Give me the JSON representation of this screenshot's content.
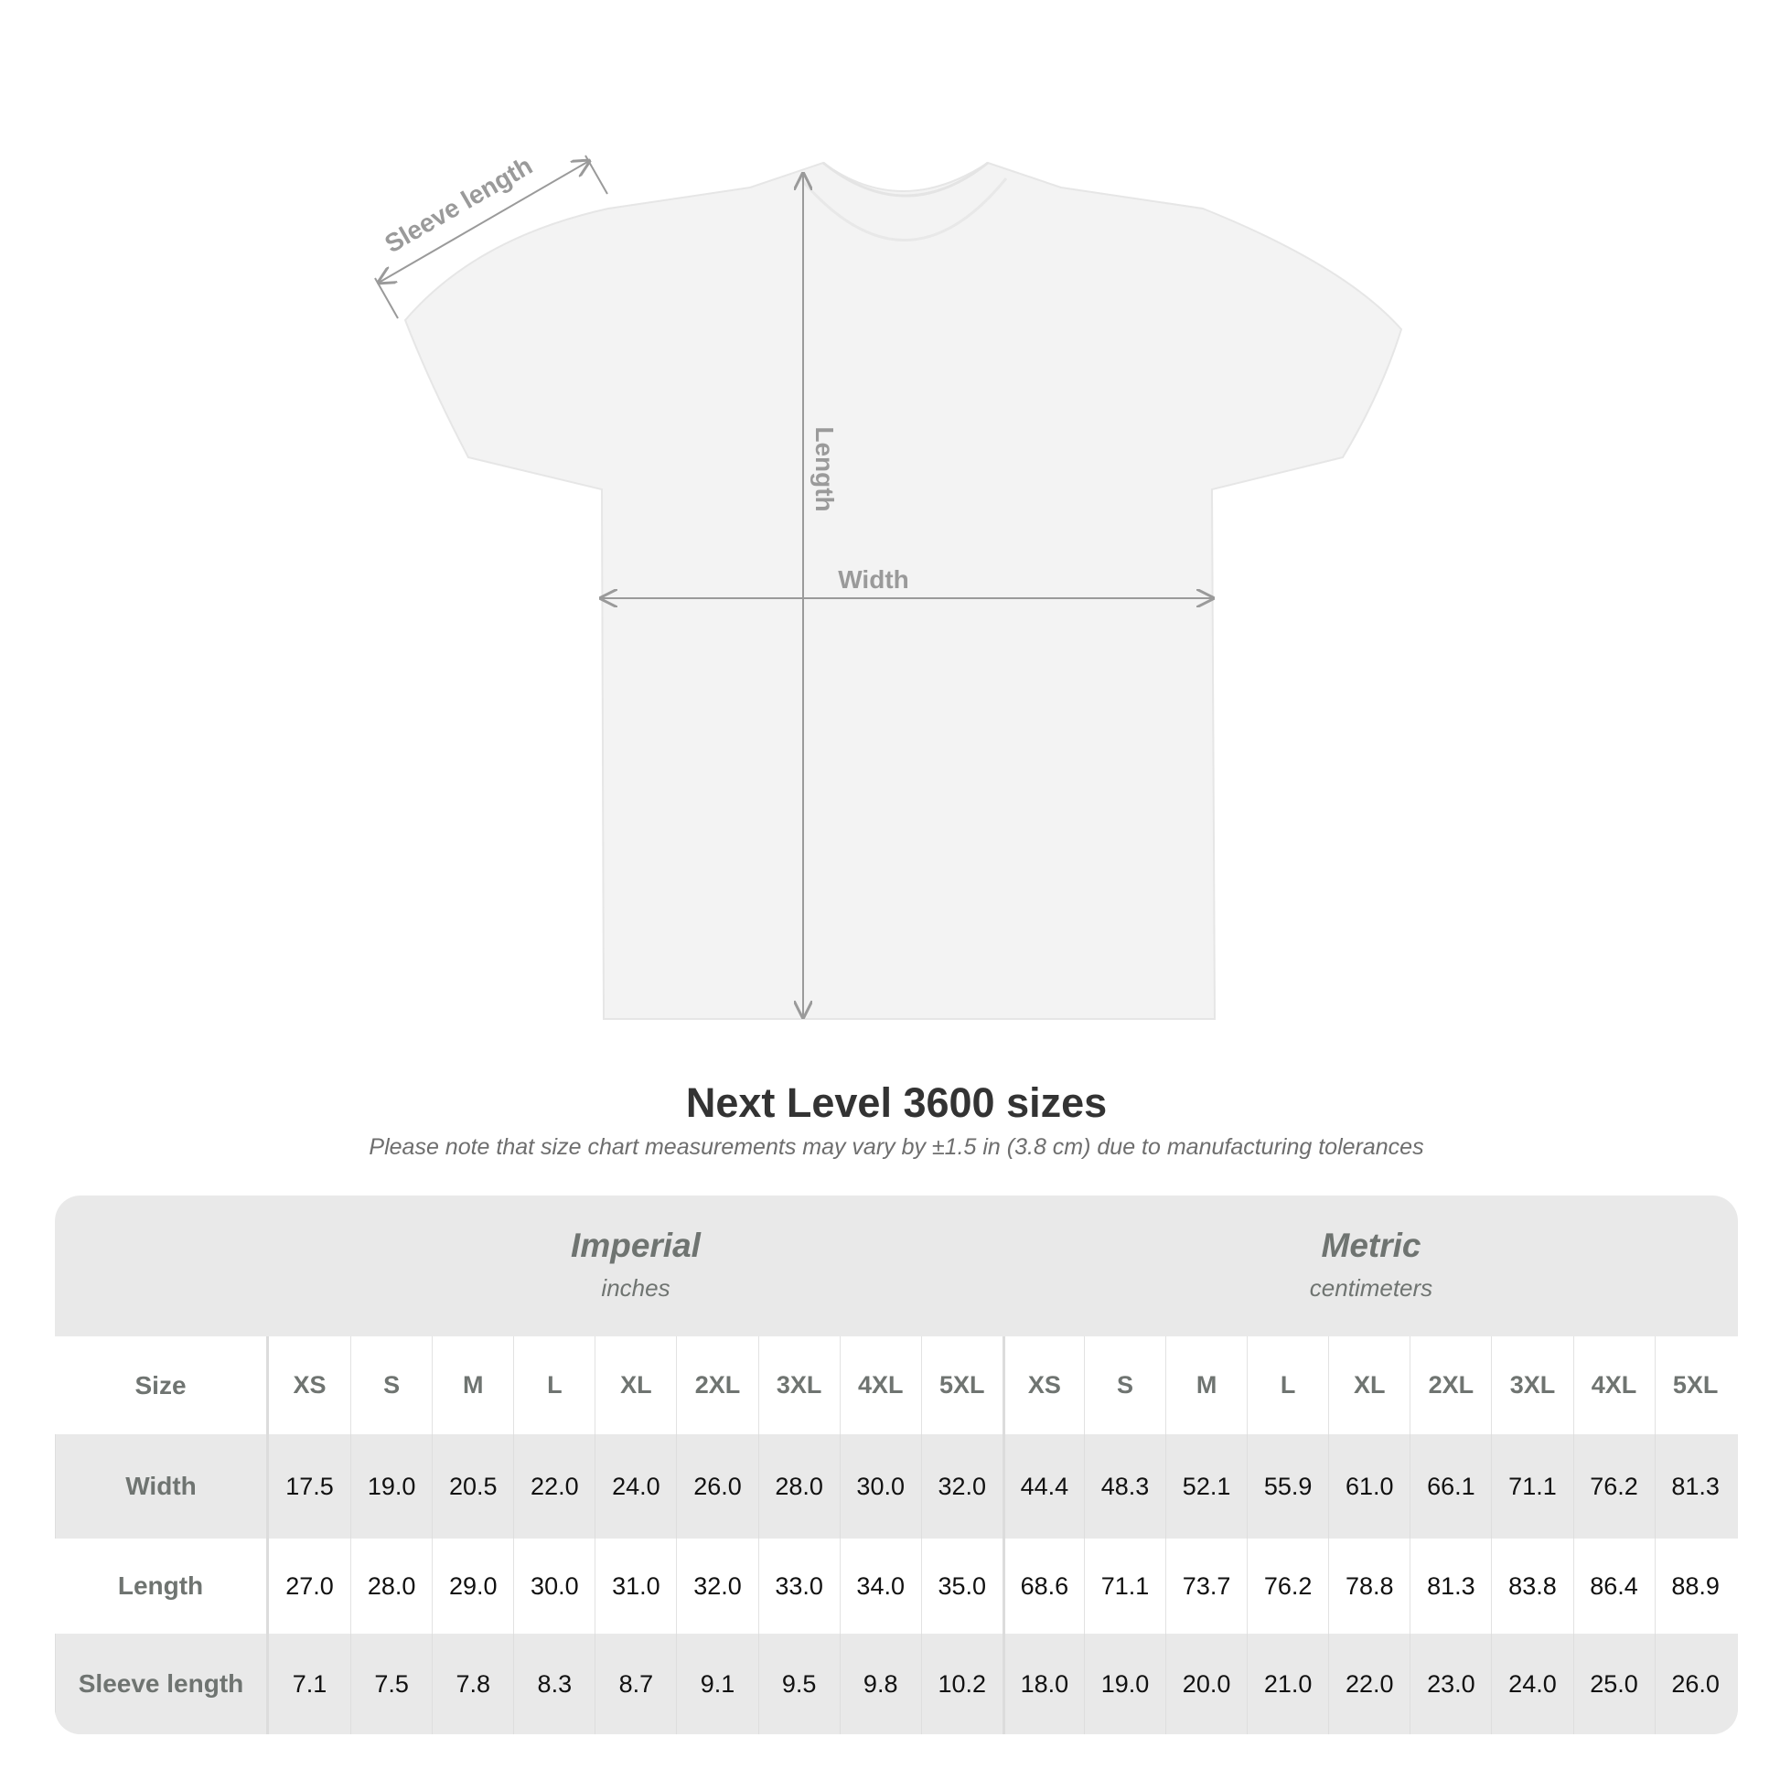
{
  "diagram": {
    "labels": {
      "sleeve": "Sleeve length",
      "length": "Length",
      "width": "Width"
    },
    "shirt_color": "#f3f3f3",
    "arrow_color": "#9a9a9a"
  },
  "title": "Next Level 3600 sizes",
  "subtitle": "Please note that size chart measurements may vary by ±1.5 in (3.8 cm) due to manufacturing tolerances",
  "table": {
    "imperial": {
      "system": "Imperial",
      "unit": "inches"
    },
    "metric": {
      "system": "Metric",
      "unit": "centimeters"
    },
    "size_label": "Size",
    "sizes": [
      "XS",
      "S",
      "M",
      "L",
      "XL",
      "2XL",
      "3XL",
      "4XL",
      "5XL"
    ],
    "rows": [
      {
        "label": "Width",
        "imperial": [
          "17.5",
          "19.0",
          "20.5",
          "22.0",
          "24.0",
          "26.0",
          "28.0",
          "30.0",
          "32.0"
        ],
        "metric": [
          "44.4",
          "48.3",
          "52.1",
          "55.9",
          "61.0",
          "66.1",
          "71.1",
          "76.2",
          "81.3"
        ]
      },
      {
        "label": "Length",
        "imperial": [
          "27.0",
          "28.0",
          "29.0",
          "30.0",
          "31.0",
          "32.0",
          "33.0",
          "34.0",
          "35.0"
        ],
        "metric": [
          "68.6",
          "71.1",
          "73.7",
          "76.2",
          "78.8",
          "81.3",
          "83.8",
          "86.4",
          "88.9"
        ]
      },
      {
        "label": "Sleeve length",
        "imperial": [
          "7.1",
          "7.5",
          "7.8",
          "8.3",
          "8.7",
          "9.1",
          "9.5",
          "9.8",
          "10.2"
        ],
        "metric": [
          "18.0",
          "19.0",
          "20.0",
          "21.0",
          "22.0",
          "23.0",
          "24.0",
          "25.0",
          "26.0"
        ]
      }
    ]
  }
}
